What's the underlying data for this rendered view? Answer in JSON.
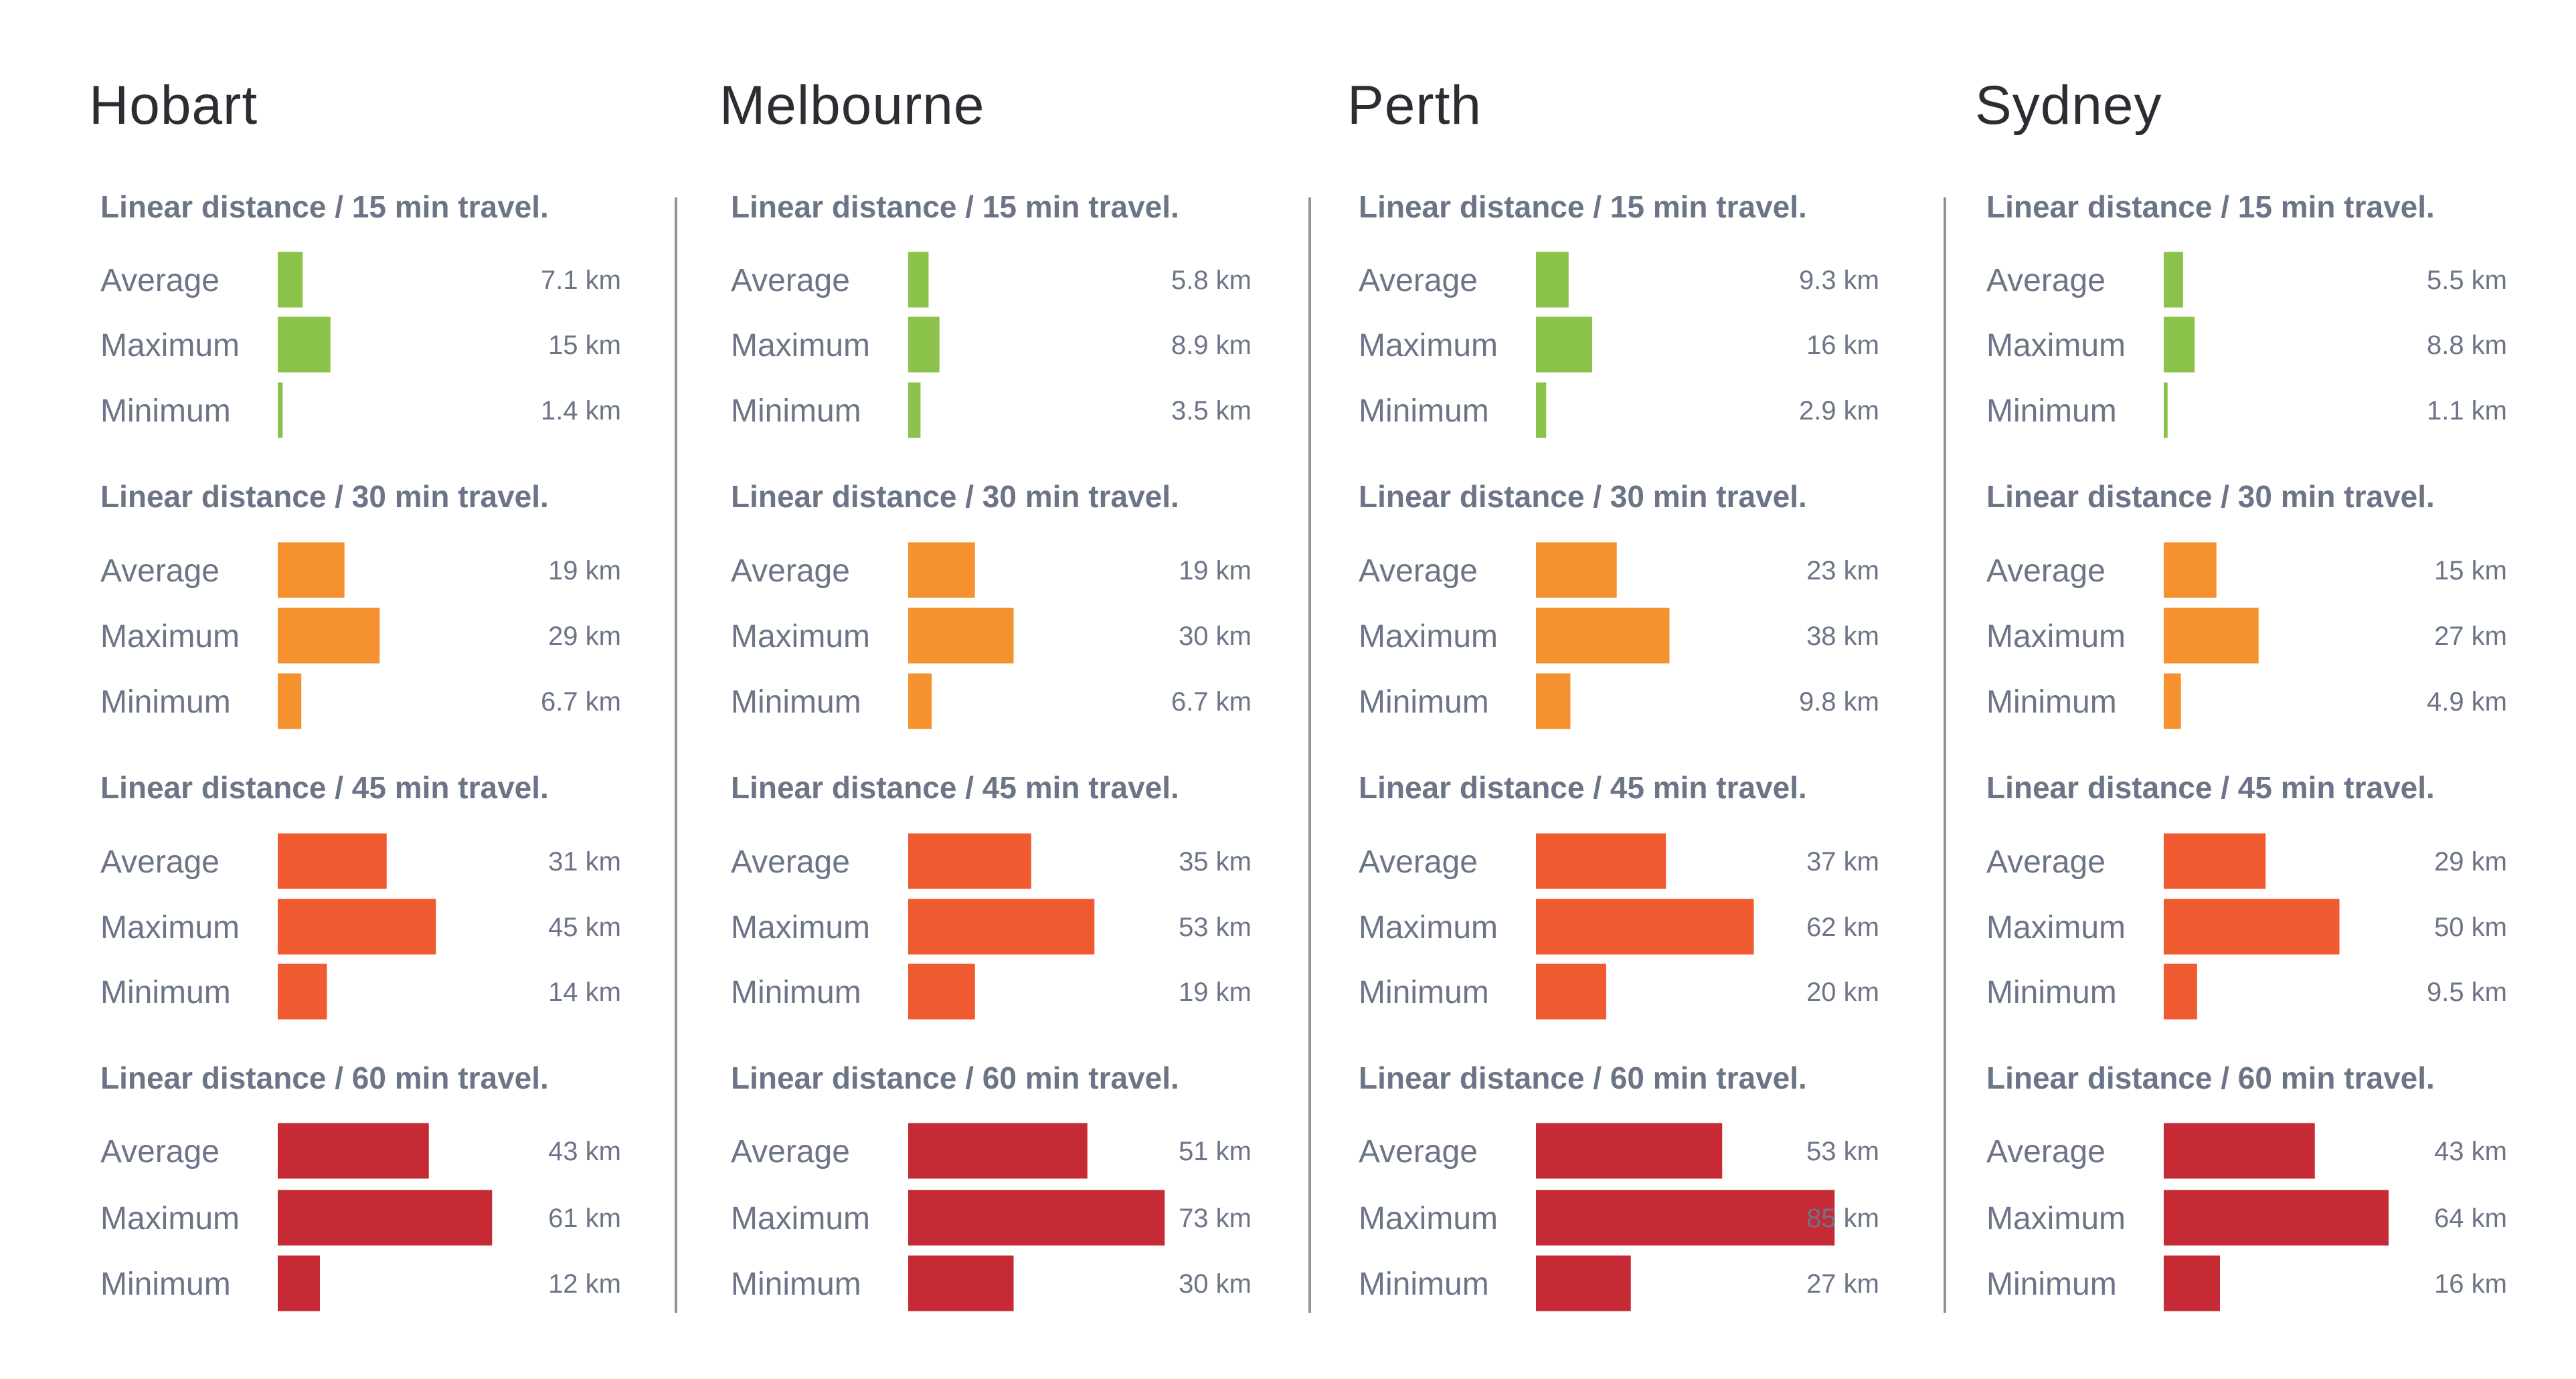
{
  "chart_data": {
    "type": "bar",
    "orientation": "horizontal",
    "unit": "km",
    "colors": {
      "15": "#8bc34a",
      "30": "#f5922f",
      "45": "#f05a30",
      "60": "#c62a35"
    },
    "panels": [
      {
        "city": "Hobart",
        "groups": [
          {
            "title": "Linear distance / 15 min travel.",
            "color": "#8bc34a",
            "rows": [
              {
                "label": "Average",
                "value": 7.1,
                "value_label": "7.1 km"
              },
              {
                "label": "Maximum",
                "value": 15,
                "value_label": "15 km"
              },
              {
                "label": "Minimum",
                "value": 1.4,
                "value_label": "1.4 km"
              }
            ]
          },
          {
            "title": "Linear distance / 30 min travel.",
            "color": "#f5922f",
            "rows": [
              {
                "label": "Average",
                "value": 19,
                "value_label": "19 km"
              },
              {
                "label": "Maximum",
                "value": 29,
                "value_label": "29 km"
              },
              {
                "label": "Minimum",
                "value": 6.7,
                "value_label": "6.7 km"
              }
            ]
          },
          {
            "title": "Linear distance / 45 min travel.",
            "color": "#f05a30",
            "rows": [
              {
                "label": "Average",
                "value": 31,
                "value_label": "31 km"
              },
              {
                "label": "Maximum",
                "value": 45,
                "value_label": "45 km"
              },
              {
                "label": "Minimum",
                "value": 14,
                "value_label": "14 km"
              }
            ]
          },
          {
            "title": "Linear distance / 60 min travel.",
            "color": "#c62a35",
            "rows": [
              {
                "label": "Average",
                "value": 43,
                "value_label": "43 km"
              },
              {
                "label": "Maximum",
                "value": 61,
                "value_label": "61 km"
              },
              {
                "label": "Minimum",
                "value": 12,
                "value_label": "12 km"
              }
            ]
          }
        ]
      },
      {
        "city": "Melbourne",
        "groups": [
          {
            "title": "Linear distance / 15 min travel.",
            "color": "#8bc34a",
            "rows": [
              {
                "label": "Average",
                "value": 5.8,
                "value_label": "5.8 km"
              },
              {
                "label": "Maximum",
                "value": 8.9,
                "value_label": "8.9 km"
              },
              {
                "label": "Minimum",
                "value": 3.5,
                "value_label": "3.5 km"
              }
            ]
          },
          {
            "title": "Linear distance / 30 min travel.",
            "color": "#f5922f",
            "rows": [
              {
                "label": "Average",
                "value": 19,
                "value_label": "19 km"
              },
              {
                "label": "Maximum",
                "value": 30,
                "value_label": "30 km"
              },
              {
                "label": "Minimum",
                "value": 6.7,
                "value_label": "6.7 km"
              }
            ]
          },
          {
            "title": "Linear distance / 45 min travel.",
            "color": "#f05a30",
            "rows": [
              {
                "label": "Average",
                "value": 35,
                "value_label": "35 km"
              },
              {
                "label": "Maximum",
                "value": 53,
                "value_label": "53 km"
              },
              {
                "label": "Minimum",
                "value": 19,
                "value_label": "19 km"
              }
            ]
          },
          {
            "title": "Linear distance / 60 min travel.",
            "color": "#c62a35",
            "rows": [
              {
                "label": "Average",
                "value": 51,
                "value_label": "51 km"
              },
              {
                "label": "Maximum",
                "value": 73,
                "value_label": "73 km"
              },
              {
                "label": "Minimum",
                "value": 30,
                "value_label": "30 km"
              }
            ]
          }
        ]
      },
      {
        "city": "Perth",
        "groups": [
          {
            "title": "Linear distance / 15 min travel.",
            "color": "#8bc34a",
            "rows": [
              {
                "label": "Average",
                "value": 9.3,
                "value_label": "9.3 km"
              },
              {
                "label": "Maximum",
                "value": 16,
                "value_label": "16 km"
              },
              {
                "label": "Minimum",
                "value": 2.9,
                "value_label": "2.9 km"
              }
            ]
          },
          {
            "title": "Linear distance / 30 min travel.",
            "color": "#f5922f",
            "rows": [
              {
                "label": "Average",
                "value": 23,
                "value_label": "23 km"
              },
              {
                "label": "Maximum",
                "value": 38,
                "value_label": "38 km"
              },
              {
                "label": "Minimum",
                "value": 9.8,
                "value_label": "9.8 km"
              }
            ]
          },
          {
            "title": "Linear distance / 45 min travel.",
            "color": "#f05a30",
            "rows": [
              {
                "label": "Average",
                "value": 37,
                "value_label": "37 km"
              },
              {
                "label": "Maximum",
                "value": 62,
                "value_label": "62 km"
              },
              {
                "label": "Minimum",
                "value": 20,
                "value_label": "20 km"
              }
            ]
          },
          {
            "title": "Linear distance / 60 min travel.",
            "color": "#c62a35",
            "rows": [
              {
                "label": "Average",
                "value": 53,
                "value_label": "53 km"
              },
              {
                "label": "Maximum",
                "value": 85,
                "value_label": "85 km"
              },
              {
                "label": "Minimum",
                "value": 27,
                "value_label": "27 km"
              }
            ]
          }
        ]
      },
      {
        "city": "Sydney",
        "groups": [
          {
            "title": "Linear distance / 15 min travel.",
            "color": "#8bc34a",
            "rows": [
              {
                "label": "Average",
                "value": 5.5,
                "value_label": "5.5 km"
              },
              {
                "label": "Maximum",
                "value": 8.8,
                "value_label": "8.8 km"
              },
              {
                "label": "Minimum",
                "value": 1.1,
                "value_label": "1.1 km"
              }
            ]
          },
          {
            "title": "Linear distance / 30 min travel.",
            "color": "#f5922f",
            "rows": [
              {
                "label": "Average",
                "value": 15,
                "value_label": "15 km"
              },
              {
                "label": "Maximum",
                "value": 27,
                "value_label": "27 km"
              },
              {
                "label": "Minimum",
                "value": 4.9,
                "value_label": "4.9 km"
              }
            ]
          },
          {
            "title": "Linear distance / 45 min travel.",
            "color": "#f05a30",
            "rows": [
              {
                "label": "Average",
                "value": 29,
                "value_label": "29 km"
              },
              {
                "label": "Maximum",
                "value": 50,
                "value_label": "50 km"
              },
              {
                "label": "Minimum",
                "value": 9.5,
                "value_label": "9.5 km"
              }
            ]
          },
          {
            "title": "Linear distance / 60 min travel.",
            "color": "#c62a35",
            "rows": [
              {
                "label": "Average",
                "value": 43,
                "value_label": "43 km"
              },
              {
                "label": "Maximum",
                "value": 64,
                "value_label": "64 km"
              },
              {
                "label": "Minimum",
                "value": 16,
                "value_label": "16 km"
              }
            ]
          }
        ]
      }
    ]
  }
}
